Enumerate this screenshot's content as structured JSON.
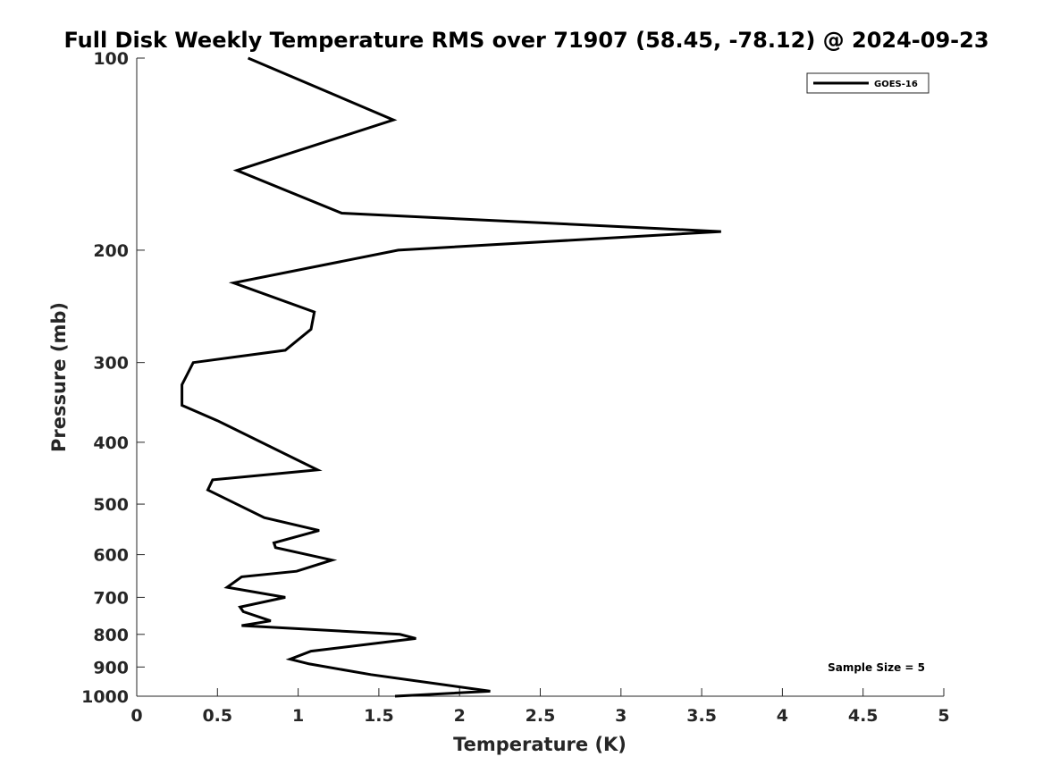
{
  "chart_data": {
    "type": "line",
    "title": "Full Disk Weekly Temperature RMS over 71907 (58.45, -78.12) @ 2024-09-23",
    "xlabel": "Temperature (K)",
    "ylabel": "Pressure (mb)",
    "xlim": [
      0,
      5
    ],
    "ylim": [
      100,
      1000
    ],
    "yscale": "log",
    "y_reversed": true,
    "grid": false,
    "legend_position": "top-right",
    "xticks": [
      0,
      0.5,
      1,
      1.5,
      2,
      2.5,
      3,
      3.5,
      4,
      4.5,
      5
    ],
    "xtick_labels": [
      "0",
      "0.5",
      "1",
      "1.5",
      "2",
      "2.5",
      "3",
      "3.5",
      "4",
      "4.5",
      "5"
    ],
    "yticks": [
      100,
      200,
      300,
      400,
      500,
      600,
      700,
      800,
      900,
      1000
    ],
    "ytick_labels": [
      "100",
      "200",
      "300",
      "400",
      "500",
      "600",
      "700",
      "800",
      "900",
      "1000"
    ],
    "series": [
      {
        "name": "GOES-16",
        "color": "#000000",
        "x": [
          0.69,
          1.59,
          0.62,
          1.27,
          3.62,
          1.62,
          0.6,
          1.1,
          1.08,
          0.92,
          0.35,
          0.28,
          0.28,
          0.5,
          1.12,
          0.47,
          0.44,
          0.79,
          1.13,
          0.85,
          0.86,
          1.21,
          0.99,
          0.65,
          0.56,
          0.92,
          0.64,
          0.66,
          0.83,
          0.65,
          1.63,
          1.73,
          1.08,
          0.95,
          1.07,
          1.45,
          2.19,
          1.6
        ],
        "y": [
          100,
          125,
          150,
          175,
          187,
          200,
          225,
          250,
          266,
          287,
          300,
          325,
          350,
          370,
          442,
          458,
          475,
          525,
          550,
          575,
          585,
          612,
          637,
          650,
          675,
          700,
          725,
          737,
          762,
          775,
          800,
          812,
          850,
          875,
          890,
          925,
          982,
          1000
        ]
      }
    ],
    "annotations": [
      {
        "text": "Sample Size = 5"
      }
    ]
  }
}
